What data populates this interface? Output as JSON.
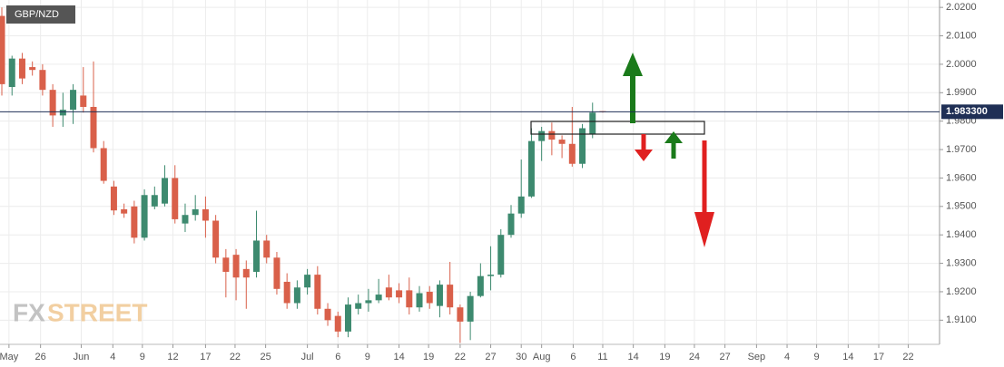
{
  "chart_data": {
    "type": "candlestick",
    "title": "GBP/NZD",
    "watermark_parts": [
      "FX",
      "STREET"
    ],
    "up_color": "#3d8a6f",
    "down_color": "#d9604a",
    "grid": true,
    "x": [
      0,
      1,
      2,
      3,
      4,
      5,
      6,
      7,
      8,
      9,
      10,
      11,
      12,
      13,
      14,
      15,
      16,
      17,
      18,
      19,
      20,
      21,
      22,
      23,
      24,
      25,
      26,
      27,
      28,
      29,
      30,
      31,
      32,
      33,
      34,
      35,
      36,
      37,
      38,
      39,
      40,
      41,
      42,
      43,
      44,
      45,
      46,
      47,
      48,
      49,
      50,
      51,
      52,
      53,
      54,
      55,
      56,
      57,
      58,
      59
    ],
    "open": [
      2.017,
      1.992,
      2.002,
      1.999,
      1.998,
      1.991,
      1.982,
      1.984,
      1.989,
      1.985,
      1.9705,
      1.957,
      1.949,
      1.95,
      1.939,
      1.95,
      1.951,
      1.96,
      1.944,
      1.947,
      1.949,
      1.945,
      1.932,
      1.933,
      1.928,
      1.927,
      1.938,
      1.932,
      1.9235,
      1.916,
      1.9215,
      1.926,
      1.914,
      1.9115,
      1.906,
      1.914,
      1.916,
      1.917,
      1.9215,
      1.9205,
      1.9205,
      1.9145,
      1.92,
      1.915,
      1.9225,
      1.9145,
      1.9095,
      1.9185,
      1.9255,
      1.926,
      1.94,
      1.9475,
      1.9535,
      1.973,
      1.9765,
      1.9735,
      1.972,
      1.965,
      1.9755,
      1.9835
    ],
    "high": [
      2.02,
      2.003,
      2.004,
      2.001,
      2.0,
      1.993,
      1.99,
      1.993,
      1.999,
      2.001,
      1.973,
      1.959,
      1.951,
      1.952,
      1.956,
      1.957,
      1.9645,
      1.9645,
      1.951,
      1.954,
      1.9535,
      1.947,
      1.935,
      1.935,
      1.931,
      1.9485,
      1.94,
      1.934,
      1.9265,
      1.924,
      1.928,
      1.929,
      1.916,
      1.913,
      1.918,
      1.919,
      1.921,
      1.9245,
      1.926,
      1.923,
      1.925,
      1.922,
      1.922,
      1.924,
      1.9305,
      1.9155,
      1.92,
      1.93,
      1.936,
      1.942,
      1.9505,
      1.9665,
      1.9775,
      1.978,
      1.9795,
      1.975,
      1.985,
      1.979,
      1.9865,
      1.9835
    ],
    "low": [
      1.989,
      1.989,
      1.993,
      1.996,
      1.989,
      1.978,
      1.978,
      1.979,
      1.983,
      1.969,
      1.958,
      1.947,
      1.946,
      1.937,
      1.938,
      1.949,
      1.95,
      1.944,
      1.941,
      1.945,
      1.939,
      1.93,
      1.918,
      1.917,
      1.914,
      1.925,
      1.93,
      1.919,
      1.914,
      1.914,
      1.919,
      1.912,
      1.908,
      1.904,
      1.904,
      1.912,
      1.913,
      1.916,
      1.917,
      1.916,
      1.912,
      1.913,
      1.914,
      1.911,
      1.912,
      1.902,
      1.903,
      1.918,
      1.9205,
      1.925,
      1.939,
      1.946,
      1.953,
      1.966,
      1.968,
      1.967,
      1.964,
      1.9635,
      1.974,
      1.983
    ],
    "close": [
      1.993,
      2.002,
      1.995,
      1.998,
      1.991,
      1.982,
      1.984,
      1.991,
      1.985,
      1.9705,
      1.959,
      1.9486,
      1.9475,
      1.939,
      1.954,
      1.954,
      1.96,
      1.9455,
      1.947,
      1.949,
      1.945,
      1.932,
      1.927,
      1.925,
      1.925,
      1.938,
      1.932,
      1.921,
      1.916,
      1.9215,
      1.926,
      1.914,
      1.91,
      1.906,
      1.9155,
      1.916,
      1.917,
      1.919,
      1.918,
      1.918,
      1.9145,
      1.9195,
      1.916,
      1.9225,
      1.9145,
      1.9095,
      1.9185,
      1.9255,
      1.926,
      1.94,
      1.9475,
      1.9535,
      1.973,
      1.9765,
      1.9735,
      1.972,
      1.965,
      1.9775,
      1.983,
      1.9833
    ],
    "xlim": [
      -0.18,
      92.07
    ],
    "xticks": [
      {
        "value": 0.7,
        "label": "May"
      },
      {
        "value": 3.8,
        "label": "26"
      },
      {
        "value": 7.8,
        "label": "Jun"
      },
      {
        "value": 10.9,
        "label": "4"
      },
      {
        "value": 13.8,
        "label": "9"
      },
      {
        "value": 16.8,
        "label": "12"
      },
      {
        "value": 20.0,
        "label": "17"
      },
      {
        "value": 22.9,
        "label": "22"
      },
      {
        "value": 25.9,
        "label": "25"
      },
      {
        "value": 30.0,
        "label": "Jul"
      },
      {
        "value": 33.0,
        "label": "6"
      },
      {
        "value": 35.9,
        "label": "9"
      },
      {
        "value": 39.0,
        "label": "14"
      },
      {
        "value": 41.9,
        "label": "19"
      },
      {
        "value": 45.0,
        "label": "22"
      },
      {
        "value": 48.0,
        "label": "27"
      },
      {
        "value": 51.0,
        "label": "30"
      },
      {
        "value": 53.0,
        "label": "Aug"
      },
      {
        "value": 56.1,
        "label": "6"
      },
      {
        "value": 59.0,
        "label": "11"
      },
      {
        "value": 62.0,
        "label": "14"
      },
      {
        "value": 65.1,
        "label": "19"
      },
      {
        "value": 68.0,
        "label": "24"
      },
      {
        "value": 71.0,
        "label": "27"
      },
      {
        "value": 74.1,
        "label": "Sep"
      },
      {
        "value": 77.1,
        "label": "4"
      },
      {
        "value": 80.0,
        "label": "9"
      },
      {
        "value": 83.1,
        "label": "14"
      },
      {
        "value": 86.1,
        "label": "17"
      },
      {
        "value": 89.0,
        "label": "22"
      }
    ],
    "ylim": [
      1.9015,
      2.0226
    ],
    "yticks": [
      {
        "value": 1.91,
        "label": "1.9100"
      },
      {
        "value": 1.92,
        "label": "1.9200"
      },
      {
        "value": 1.93,
        "label": "1.9300"
      },
      {
        "value": 1.94,
        "label": "1.9400"
      },
      {
        "value": 1.95,
        "label": "1.9500"
      },
      {
        "value": 1.96,
        "label": "1.9600"
      },
      {
        "value": 1.97,
        "label": "1.9700"
      },
      {
        "value": 1.98,
        "label": "1.9800"
      },
      {
        "value": 1.99,
        "label": "1.9900"
      },
      {
        "value": 2.0,
        "label": "2.0000"
      },
      {
        "value": 2.01,
        "label": "2.0100"
      },
      {
        "value": 2.02,
        "label": "2.0200"
      }
    ],
    "last_price": {
      "value": 1.9833,
      "label": "1.983300"
    }
  }
}
